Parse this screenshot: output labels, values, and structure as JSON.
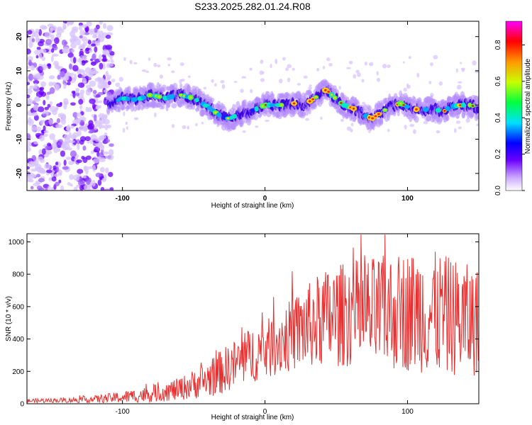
{
  "title": "S233.2025.282.01.24.R08",
  "spectrogram": {
    "type": "heatmap",
    "xlabel": "Height of straight line (km)",
    "ylabel": "Frequency (Hz)",
    "xlim": [
      -167,
      150
    ],
    "ylim": [
      -25,
      24.5
    ],
    "xticks": [
      -100,
      0,
      100
    ],
    "yticks": [
      -20,
      -10,
      0,
      10,
      20
    ],
    "ridge": {
      "x": [
        -110,
        -100,
        -90,
        -80,
        -70,
        -60,
        -50,
        -40,
        -32,
        -25,
        -20,
        -12,
        -5,
        0,
        5,
        10,
        15,
        20,
        27,
        33,
        38,
        43,
        48,
        55,
        62,
        70,
        75,
        82,
        88,
        95,
        102,
        110,
        118,
        125,
        130,
        138,
        145,
        150
      ],
      "y": [
        0,
        2,
        1.5,
        3,
        2,
        3,
        2,
        -0.5,
        -3,
        -4,
        -3,
        -2,
        -1,
        0,
        0,
        0,
        0,
        0.5,
        0,
        1.5,
        3,
        4.5,
        2.5,
        0,
        -1,
        -3,
        -4,
        -2,
        -0.5,
        0.5,
        -1,
        -1.5,
        -1,
        -2,
        -0.5,
        0,
        0,
        -1.5
      ]
    }
  },
  "colorbar": {
    "label": "Normalized spectral amplitude",
    "ticks": [
      0.0,
      0.2,
      0.4,
      0.6,
      0.8
    ],
    "range": [
      0,
      0.93
    ]
  },
  "chart_data": {
    "type": "line",
    "title": "S233.2025.282.01.24.R08",
    "xlabel": "Height of straight line (km)",
    "ylabel": "SNR (10 * v/v)",
    "xlim": [
      -167,
      150
    ],
    "ylim": [
      0,
      1050
    ],
    "xticks": [
      -100,
      0,
      100
    ],
    "yticks": [
      0,
      200,
      400,
      600,
      800,
      1000
    ],
    "series": [
      {
        "name": "SNR",
        "color": "#e83030",
        "envelope": {
          "x": [
            -167,
            -140,
            -120,
            -100,
            -80,
            -60,
            -40,
            -30,
            -20,
            -10,
            0,
            10,
            20,
            30,
            40,
            60,
            80,
            100,
            120,
            140,
            150
          ],
          "mean": [
            18,
            22,
            28,
            40,
            60,
            90,
            150,
            200,
            250,
            300,
            330,
            380,
            430,
            480,
            520,
            560,
            560,
            570,
            560,
            520,
            500
          ],
          "amplitude": [
            12,
            15,
            22,
            35,
            50,
            70,
            110,
            140,
            150,
            170,
            180,
            200,
            230,
            260,
            300,
            330,
            350,
            370,
            380,
            350,
            330
          ]
        }
      }
    ]
  }
}
